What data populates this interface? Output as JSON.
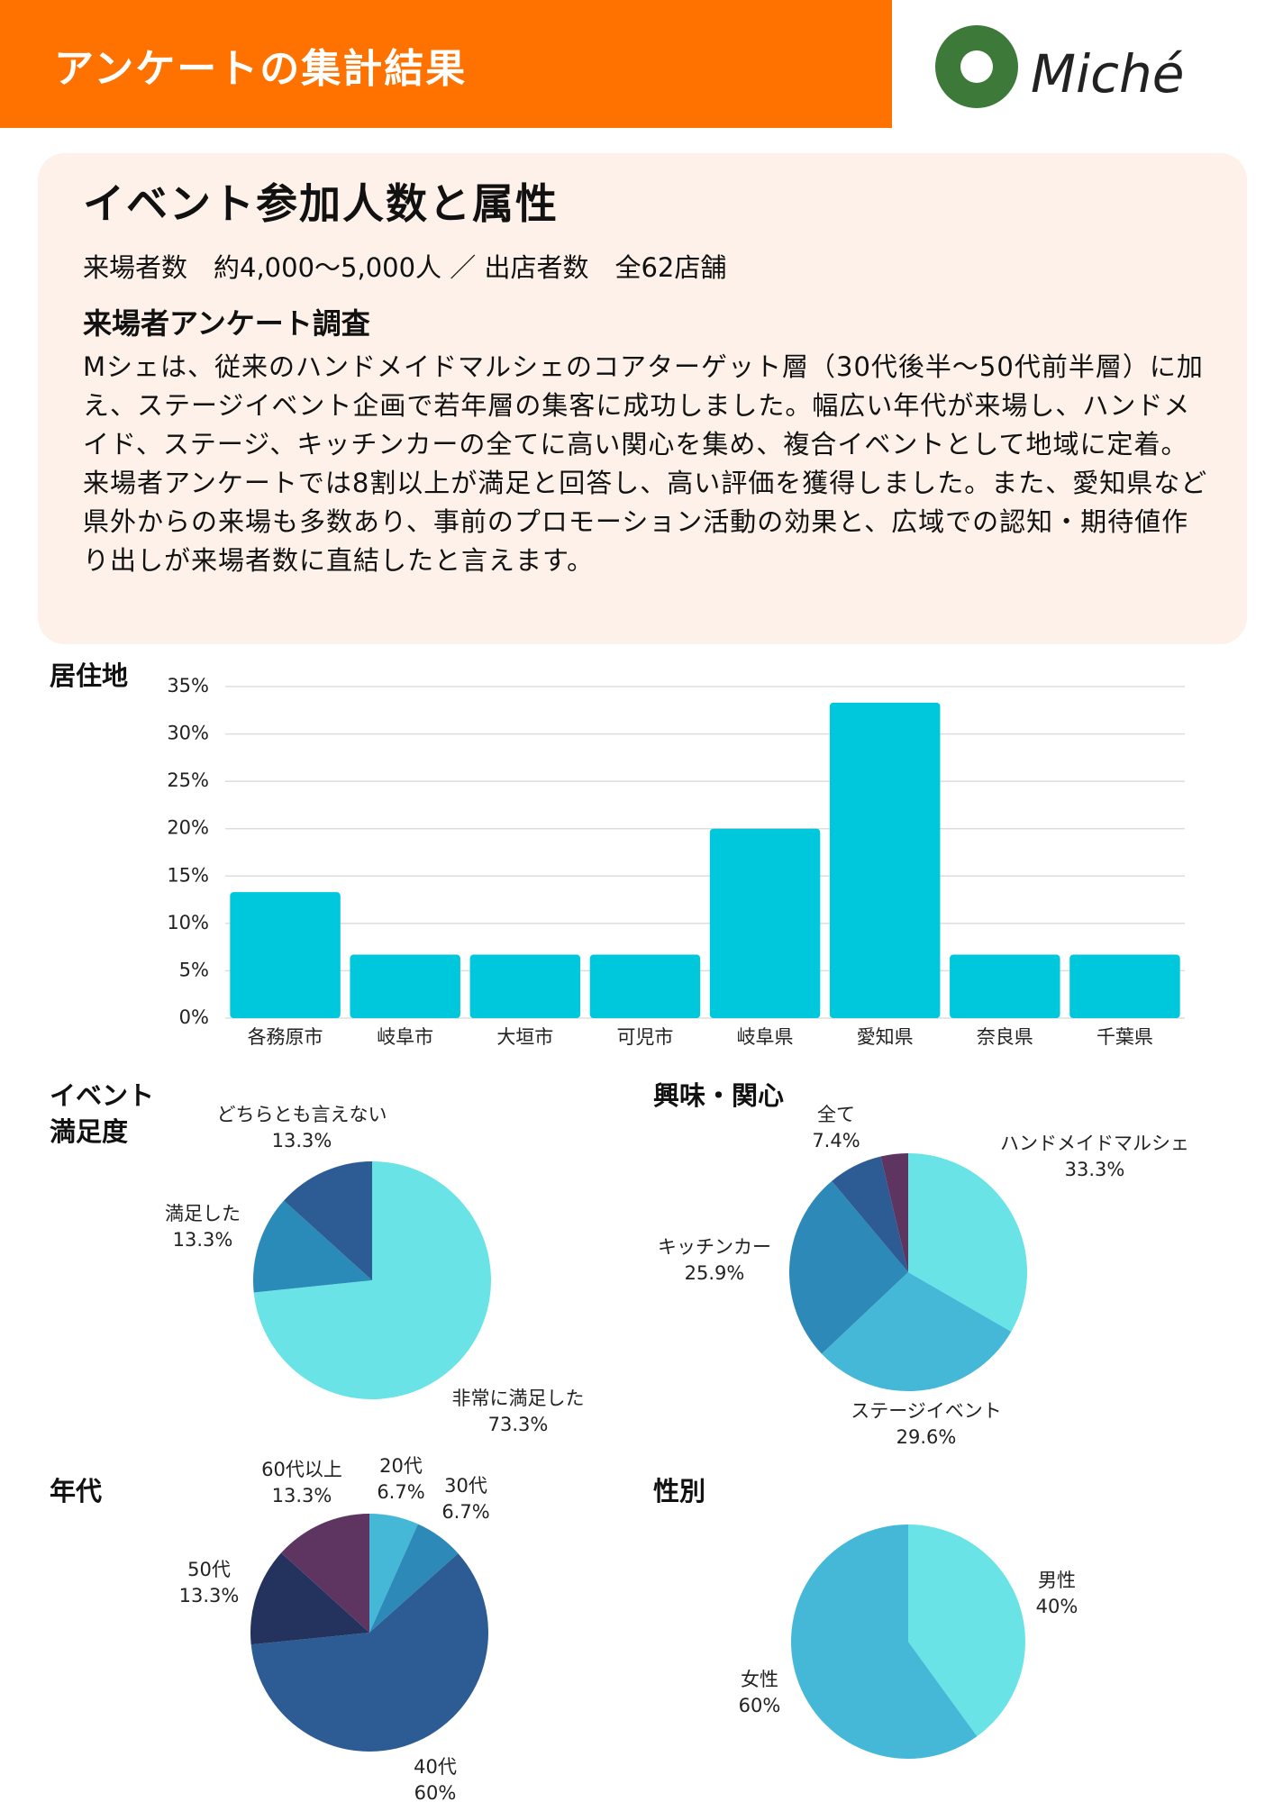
{
  "header": {
    "title": "アンケートの集計結果",
    "logo": "Miché"
  },
  "summary": {
    "heading": "イベント参加人数と属性",
    "stats": "来場者数　約4,000〜5,000人 ／ 出店者数　全62店舗",
    "subheading": "来場者アンケート調査",
    "paragraphs": [
      "Mシェは、従来のハンドメイドマルシェのコアターゲット層（30代後半〜50代前半層）に加え、ステージイベント企画で若年層の集客に成功しました。幅広い年代が来場し、ハンドメイド、ステージ、キッチンカーの全てに高い関心を集め、複合イベントとして地域に定着。",
      "来場者アンケートでは8割以上が満足と回答し、高い評価を獲得しました。また、愛知県など県外からの来場も多数あり、事前のプロモーション活動の効果と、広域での認知・期待値作り出しが来場者数に直結したと言えます。"
    ]
  },
  "chart_data": [
    {
      "type": "bar",
      "title": [
        "居住地"
      ],
      "categories": [
        "各務原市",
        "岐阜市",
        "大垣市",
        "可児市",
        "岐阜県",
        "愛知県",
        "奈良県",
        "千葉県"
      ],
      "values": [
        13.3,
        6.7,
        6.7,
        6.7,
        20,
        33.3,
        6.7,
        6.7
      ],
      "color": "#00c8dc",
      "ylim": [
        0,
        35
      ],
      "yticks": [
        {
          "value": 0,
          "label": "0%"
        },
        {
          "value": 5,
          "label": "5%"
        },
        {
          "value": 10,
          "label": "10%"
        },
        {
          "value": 15,
          "label": "15%"
        },
        {
          "value": 20,
          "label": "20%"
        },
        {
          "value": 25,
          "label": "25%"
        },
        {
          "value": 30,
          "label": "30%"
        },
        {
          "value": 35,
          "label": "35%"
        }
      ],
      "grid": true
    },
    {
      "type": "pie",
      "title": [
        "イベント",
        "満足度"
      ],
      "categories": [
        "非常に満足した",
        "満足した",
        "どちらとも言えない"
      ],
      "values": [
        73.3,
        13.3,
        13.3
      ],
      "value_labels": [
        "73.3%",
        "13.3%",
        "13.3%"
      ],
      "colors": [
        "#69e3e6",
        "#2a8ab8",
        "#2d5b94"
      ]
    },
    {
      "type": "pie",
      "title": [
        "興味・関心"
      ],
      "categories": [
        "ハンドメイドマルシェ",
        "ステージイベント",
        "キッチンカー",
        "全て",
        null
      ],
      "values": [
        33.3,
        29.6,
        25.9,
        7.4,
        3.7
      ],
      "value_labels": [
        "33.3%",
        "29.6%",
        "25.9%",
        "7.4%",
        null
      ],
      "colors": [
        "#69e3e6",
        "#45b8d8",
        "#2d8ab8",
        "#2d5b94",
        "#5e3560"
      ]
    },
    {
      "type": "pie",
      "title": [
        "年代"
      ],
      "categories": [
        "20代",
        "30代",
        "40代",
        "50代",
        "60代以上"
      ],
      "values": [
        6.7,
        6.7,
        60,
        13.3,
        13.3
      ],
      "value_labels": [
        "6.7%",
        "6.7%",
        "60%",
        "13.3%",
        "13.3%"
      ],
      "colors": [
        "#45b8d8",
        "#2d8ab8",
        "#2d5b94",
        "#24325e",
        "#5e3560"
      ]
    },
    {
      "type": "pie",
      "title": [
        "性別"
      ],
      "categories": [
        "男性",
        "女性"
      ],
      "values": [
        40,
        60
      ],
      "value_labels": [
        "40%",
        "60%"
      ],
      "colors": [
        "#69e3e6",
        "#45b8d8"
      ]
    }
  ]
}
